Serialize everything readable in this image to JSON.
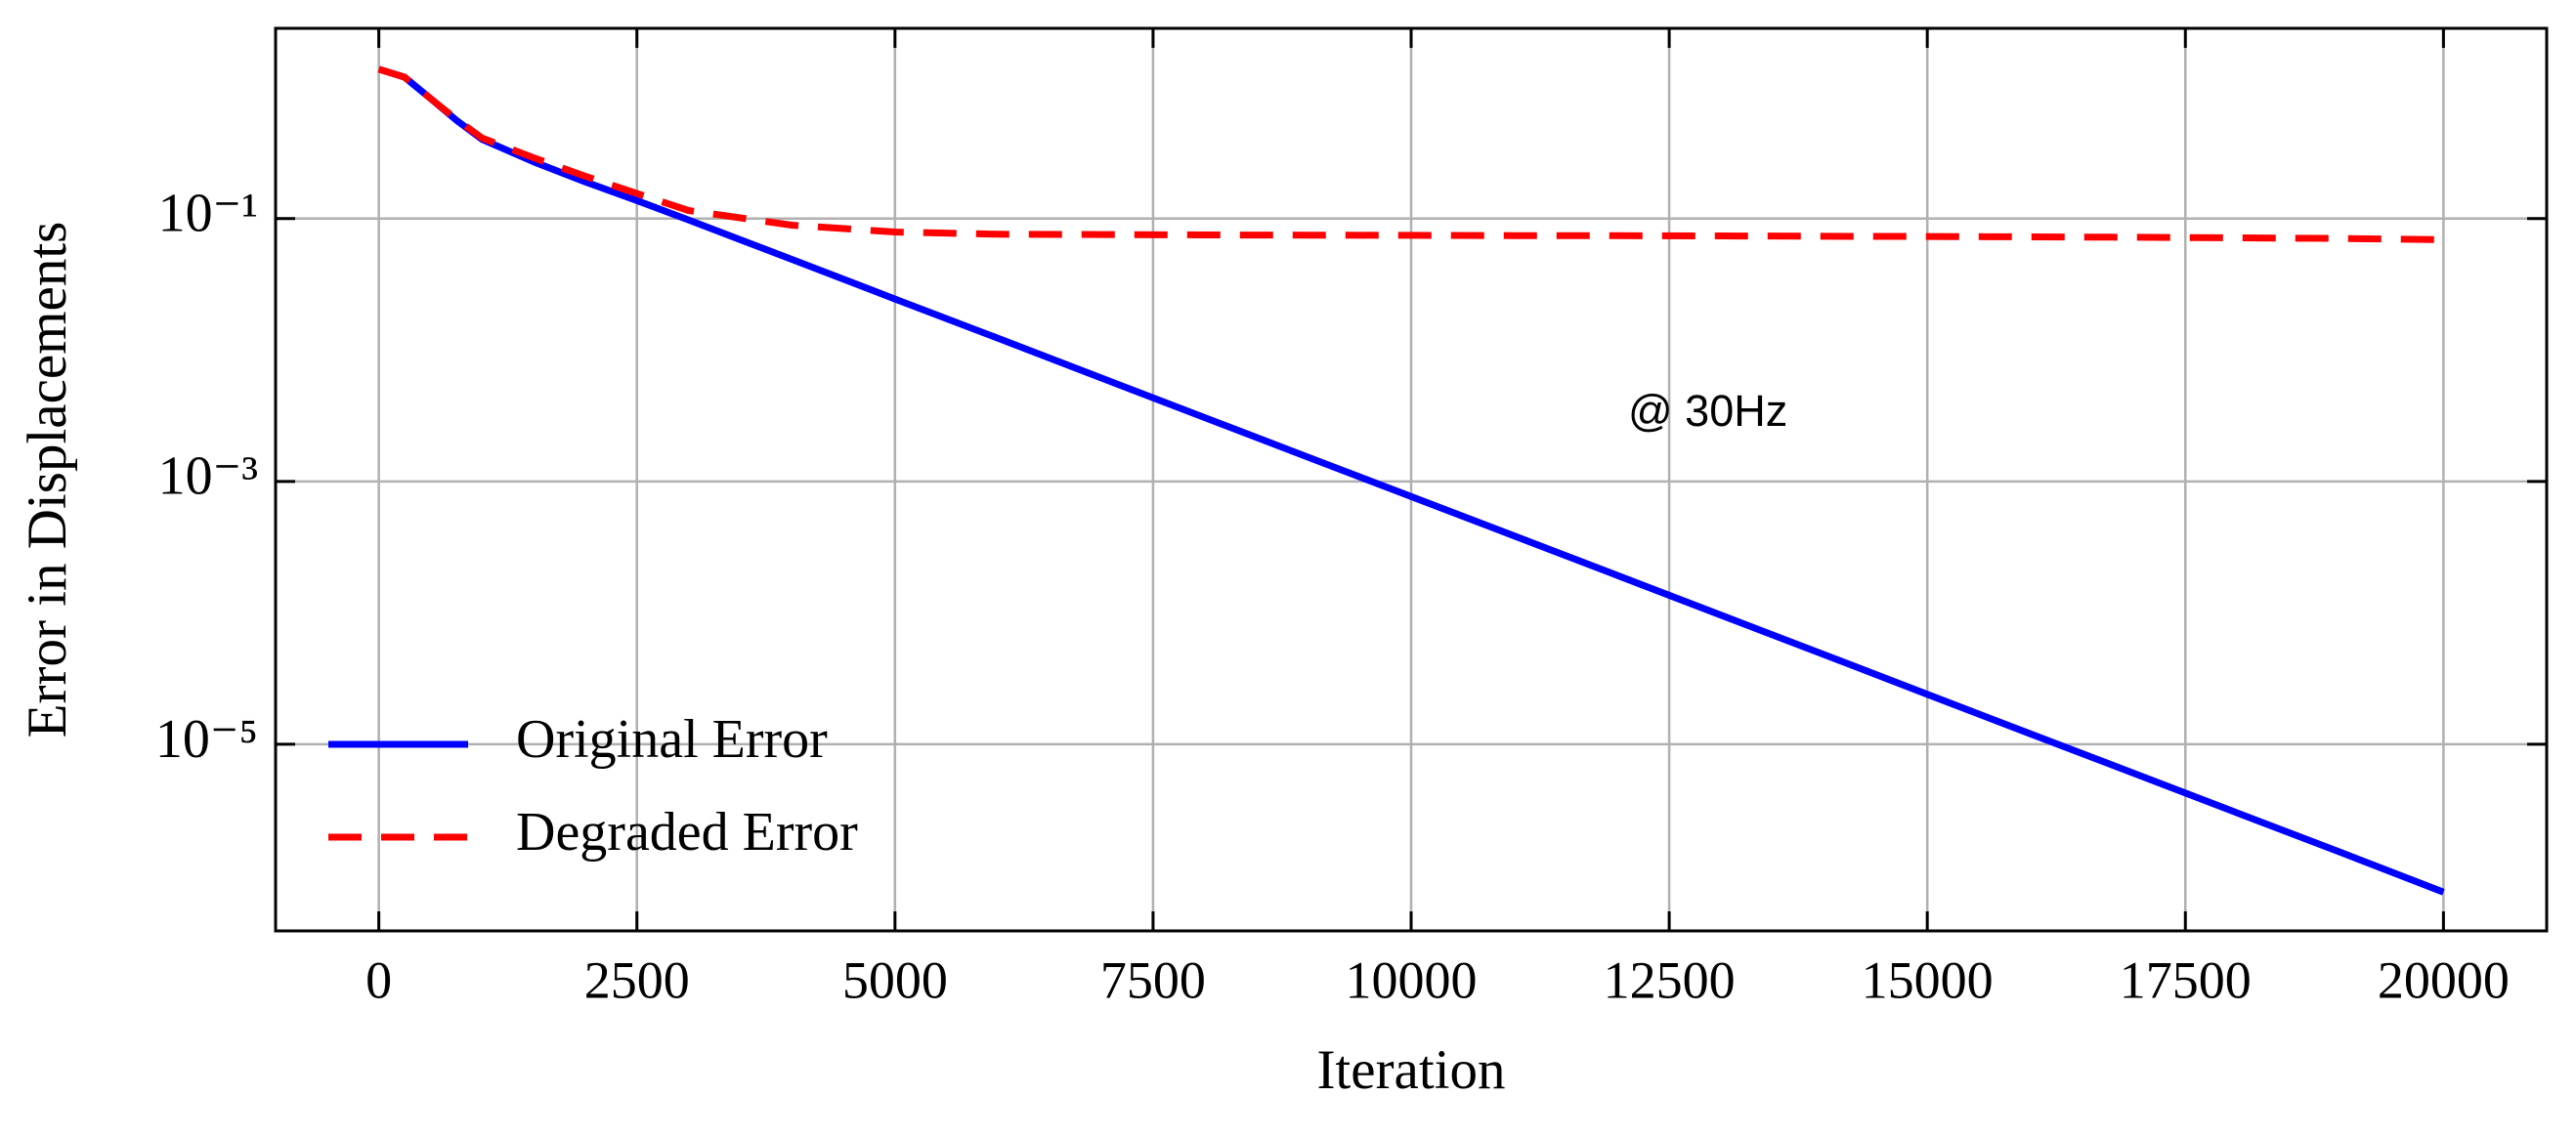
{
  "chart_data": {
    "type": "line",
    "xlabel": "Iteration",
    "ylabel": "Error in Displacements",
    "annotation": "@ 30Hz",
    "x": [
      0,
      250,
      500,
      750,
      1000,
      1500,
      2000,
      2500,
      3000,
      4000,
      5000,
      6000,
      7000,
      8000,
      9000,
      10000,
      11000,
      12000,
      13000,
      14000,
      15000,
      16000,
      17000,
      18000,
      19000,
      20000
    ],
    "series": [
      {
        "name": "Original Error",
        "color": "#0000ff",
        "dash": false,
        "values": [
          1.37,
          1.19,
          0.82,
          0.56,
          0.4,
          0.27,
          0.19,
          0.137,
          0.0977,
          0.0489,
          0.0244,
          0.01225,
          0.00612,
          0.00306,
          0.00153,
          0.000767,
          0.000384,
          0.000192,
          9.6e-05,
          4.81e-05,
          2.4e-05,
          1.2e-05,
          6.02e-06,
          3.01e-06,
          1.51e-06,
          7.5e-07
        ]
      },
      {
        "name": "Degraded Error",
        "color": "#ff0000",
        "dash": true,
        "values": [
          1.37,
          1.19,
          0.82,
          0.57,
          0.41,
          0.29,
          0.21,
          0.155,
          0.115,
          0.089,
          0.079,
          0.076,
          0.0755,
          0.075,
          0.0748,
          0.0745,
          0.0742,
          0.074,
          0.0737,
          0.0733,
          0.073,
          0.0725,
          0.072,
          0.0713,
          0.0705,
          0.069
        ]
      }
    ],
    "xlim": [
      -1000,
      21000
    ],
    "xticks": [
      0,
      2500,
      5000,
      7500,
      10000,
      12500,
      15000,
      17500,
      20000
    ],
    "ylim": [
      3.8e-07,
      2.8
    ],
    "ylog": true,
    "yticks": [
      {
        "value": 0.1,
        "label": "10⁻¹"
      },
      {
        "value": 0.001,
        "label": "10⁻³"
      },
      {
        "value": 1e-05,
        "label": "10⁻⁵"
      }
    ],
    "grid": true,
    "legend": "lower left",
    "annotation_color": "#1a9a1a"
  }
}
